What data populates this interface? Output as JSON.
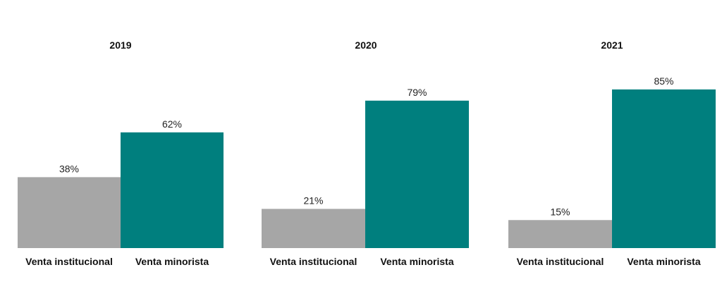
{
  "chart_data": [
    {
      "type": "bar",
      "title": "2019",
      "categories": [
        "Venta institucional",
        "Venta minorista"
      ],
      "values": [
        38,
        62
      ],
      "value_labels": [
        "38%",
        "62%"
      ],
      "colors": [
        "#a6a6a6",
        "#007f7e"
      ],
      "ylim": [
        0,
        100
      ],
      "grid": false
    },
    {
      "type": "bar",
      "title": "2020",
      "categories": [
        "Venta institucional",
        "Venta minorista"
      ],
      "values": [
        21,
        79
      ],
      "value_labels": [
        "21%",
        "79%"
      ],
      "colors": [
        "#a6a6a6",
        "#007f7e"
      ],
      "ylim": [
        0,
        100
      ],
      "grid": false
    },
    {
      "type": "bar",
      "title": "2021",
      "categories": [
        "Venta institucional",
        "Venta minorista"
      ],
      "values": [
        15,
        85
      ],
      "value_labels": [
        "15%",
        "85%"
      ],
      "colors": [
        "#a6a6a6",
        "#007f7e"
      ],
      "ylim": [
        0,
        100
      ],
      "grid": false
    }
  ]
}
